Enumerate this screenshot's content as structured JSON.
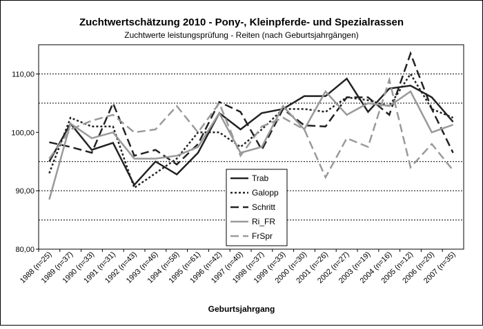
{
  "chart_data": {
    "type": "line",
    "title": "Zuchtwertschätzung 2010 - Pony-, Kleinpferde- und Spezialrassen",
    "subtitle": "Zuchtwerte leistungsprüfung - Reiten (nach Geburtsjahrgängen)",
    "x_label": "Geburtsjahrgang",
    "categories": [
      "1988 (n=25)",
      "1989 (n=37)",
      "1990 (n=33)",
      "1991 (n=31)",
      "1992 (n=43)",
      "1993 (n=46)",
      "1994 (n=58)",
      "1995 (n=61)",
      "1996 (n=42)",
      "1997 (n=40)",
      "1998 (n=37)",
      "1999 (n=33)",
      "2000 (n=30)",
      "2001 (n=26)",
      "2002 (n=27)",
      "2003 (n=19)",
      "2004 (n=16)",
      "2005 (n=12)",
      "2006 (n=20)",
      "2007 (n=35)"
    ],
    "series": [
      {
        "name": "Trab",
        "color": "#222222",
        "style": "solid",
        "values": [
          95,
          101.5,
          97,
          98.2,
          91,
          95,
          92.8,
          96.5,
          103.3,
          100.5,
          103.3,
          104,
          106.2,
          106.2,
          109.2,
          103.5,
          107.5,
          108,
          106,
          101.8
        ]
      },
      {
        "name": "Galopp",
        "color": "#222222",
        "style": "dotted",
        "values": [
          93,
          102.5,
          101,
          101,
          90.5,
          93,
          95.5,
          100,
          100,
          97.5,
          100.5,
          104,
          104,
          103.5,
          106,
          105.5,
          104.5,
          110,
          104,
          102.5
        ]
      },
      {
        "name": "Schritt",
        "color": "#222222",
        "style": "dashed",
        "values": [
          98.3,
          97.5,
          96.5,
          105,
          96,
          97,
          94.5,
          98,
          105.2,
          103.5,
          97,
          104,
          101.2,
          101,
          106,
          106,
          103,
          113.5,
          104,
          96.5
        ]
      },
      {
        "name": "Ri_FR",
        "color": "#999999",
        "style": "solid",
        "values": [
          88.5,
          101.5,
          99,
          100,
          95.5,
          95.5,
          96,
          97.5,
          103.3,
          96.5,
          97.5,
          104.5,
          100.5,
          107,
          103,
          105,
          104.5,
          107,
          100,
          101.3
        ]
      },
      {
        "name": "FrSpr",
        "color": "#999999",
        "style": "dashed",
        "values": [
          95.5,
          100.5,
          102,
          103,
          100,
          100.5,
          104.5,
          100,
          105,
          96,
          101,
          102.5,
          100.5,
          92.3,
          99,
          97.5,
          109,
          94,
          98,
          93.5
        ]
      }
    ],
    "ylim": [
      80,
      115
    ],
    "yticks": [
      {
        "value": 80,
        "label": "80,00"
      },
      {
        "value": 90,
        "label": "90,00"
      },
      {
        "value": 100,
        "label": "100,00"
      },
      {
        "value": 110,
        "label": "110,00"
      }
    ],
    "grid_lines": [
      85,
      90,
      95,
      105,
      110
    ]
  }
}
